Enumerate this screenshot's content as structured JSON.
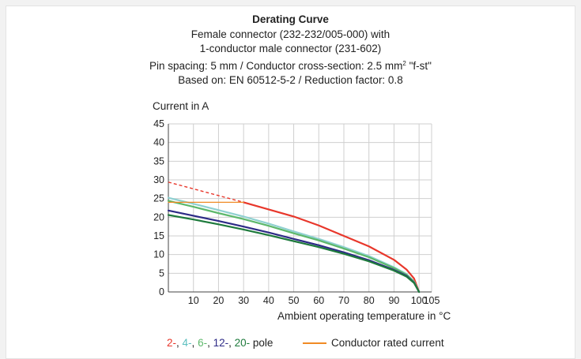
{
  "title": {
    "line1": "Derating Curve",
    "line2": "Female connector (232-232/005-000) with",
    "line3": "1-conductor male connector (231-602)",
    "line4_pre": "Pin spacing: 5 mm / Conductor cross-section: 2.5 mm",
    "line4_sup": "2",
    "line4_post": " \"f-st\"",
    "line5": "Based on: EN 60512-5-2 / Reduction factor: 0.8"
  },
  "chart_data": {
    "type": "line",
    "ylabel": "Current in A",
    "xlabel": "Ambient operating temperature in °C",
    "xlim": [
      0,
      105
    ],
    "ylim": [
      0,
      45
    ],
    "x_ticks": [
      10,
      20,
      30,
      40,
      50,
      60,
      70,
      80,
      90,
      100,
      105
    ],
    "y_ticks": [
      0,
      5,
      10,
      15,
      20,
      25,
      30,
      35,
      40,
      45
    ],
    "grid": true,
    "series": [
      {
        "name": "2",
        "color": "#e8372b",
        "width": 2.2,
        "dashed": {
          "x": [
            0,
            30
          ],
          "y": [
            29.4,
            24.0
          ]
        },
        "x": [
          30,
          40,
          50,
          60,
          70,
          80,
          90,
          95,
          98,
          100
        ],
        "y": [
          24.0,
          22.1,
          20.2,
          17.8,
          15.0,
          12.2,
          8.6,
          6.0,
          3.6,
          0
        ]
      },
      {
        "name": "4",
        "color": "#8fd0d0",
        "width": 2.2,
        "x": [
          0,
          10,
          20,
          30,
          40,
          50,
          60,
          70,
          80,
          90,
          95,
          98,
          100
        ],
        "y": [
          25.2,
          23.6,
          21.9,
          20.2,
          18.3,
          16.2,
          14.2,
          12.0,
          9.6,
          6.6,
          4.8,
          2.8,
          0
        ]
      },
      {
        "name": "6",
        "color": "#5db86b",
        "width": 2.2,
        "x": [
          0,
          10,
          20,
          30,
          40,
          50,
          60,
          70,
          80,
          90,
          95,
          98,
          100
        ],
        "y": [
          24.4,
          22.8,
          21.1,
          19.5,
          17.7,
          15.7,
          13.8,
          11.6,
          9.3,
          6.4,
          4.6,
          2.7,
          0
        ]
      },
      {
        "name": "12",
        "color": "#2d2a86",
        "width": 2.2,
        "x": [
          0,
          10,
          20,
          30,
          40,
          50,
          60,
          70,
          80,
          90,
          95,
          98,
          100
        ],
        "y": [
          21.8,
          20.4,
          19.0,
          17.5,
          15.9,
          14.2,
          12.5,
          10.6,
          8.5,
          5.9,
          4.3,
          2.5,
          0
        ]
      },
      {
        "name": "20",
        "color": "#1e7a3c",
        "width": 2.2,
        "x": [
          0,
          10,
          20,
          30,
          40,
          50,
          60,
          70,
          80,
          90,
          95,
          98,
          100
        ],
        "y": [
          20.6,
          19.4,
          18.1,
          16.7,
          15.2,
          13.6,
          12.0,
          10.2,
          8.2,
          5.7,
          4.1,
          2.4,
          0
        ]
      },
      {
        "name": "Conductor rated current",
        "color": "#f08a24",
        "width": 1.3,
        "x": [
          0,
          30
        ],
        "y": [
          24.0,
          24.0
        ]
      }
    ]
  },
  "legend": {
    "poles": [
      {
        "label": "2-",
        "color": "#e8372b"
      },
      {
        "label": ", ",
        "color": "#222222"
      },
      {
        "label": "4-",
        "color": "#5bbfbf"
      },
      {
        "label": ", ",
        "color": "#222222"
      },
      {
        "label": "6-",
        "color": "#5db86b"
      },
      {
        "label": ", ",
        "color": "#222222"
      },
      {
        "label": "12-",
        "color": "#2d2a86"
      },
      {
        "label": ", ",
        "color": "#222222"
      },
      {
        "label": "20-",
        "color": "#1e7a3c"
      },
      {
        "label": " pole",
        "color": "#222222"
      }
    ],
    "rated_label": "Conductor rated current",
    "rated_color": "#f08a24"
  }
}
